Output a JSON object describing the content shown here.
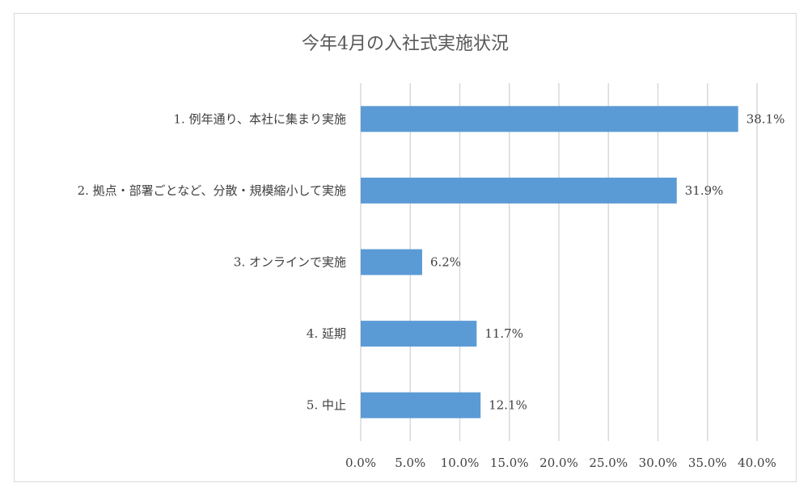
{
  "chart_data": {
    "type": "bar",
    "orientation": "horizontal",
    "title": "今年4月の入社式実施状況",
    "categories": [
      "1. 例年通り、本社に集まり実施",
      "2. 拠点・部署ごとなど、分散・規模縮小して実施",
      "3. オンラインで実施",
      "4. 延期",
      "5. 中止"
    ],
    "values": [
      38.1,
      31.9,
      6.2,
      11.7,
      12.1
    ],
    "data_labels": [
      "38.1%",
      "31.9%",
      "6.2%",
      "11.7%",
      "12.1%"
    ],
    "xlim": [
      0,
      40
    ],
    "x_ticks": [
      "0.0%",
      "5.0%",
      "10.0%",
      "15.0%",
      "20.0%",
      "25.0%",
      "30.0%",
      "35.0%",
      "40.0%"
    ],
    "grid": true,
    "legend": "none",
    "bar_color": "#5b9bd5",
    "grid_color": "#d9d9d9"
  }
}
